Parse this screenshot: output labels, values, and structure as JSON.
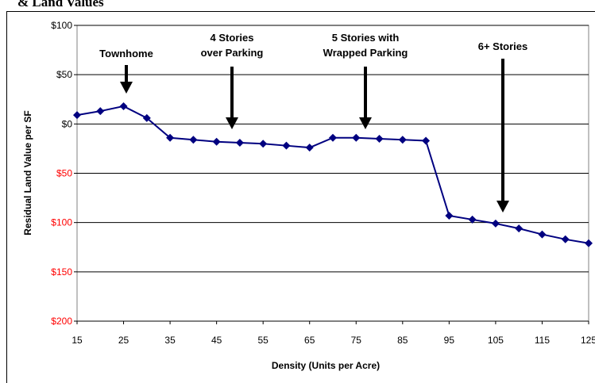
{
  "chart_data": {
    "type": "line",
    "title": "& Land Values",
    "x_label": "Density (Units per Acre)",
    "y_label": "Residual Land Value per SF",
    "x": [
      15,
      20,
      25,
      30,
      35,
      40,
      45,
      50,
      55,
      60,
      65,
      70,
      75,
      80,
      85,
      90,
      95,
      100,
      105,
      110,
      115,
      120,
      125
    ],
    "series": [
      {
        "color": "#000080",
        "values": [
          9,
          13,
          18,
          6,
          -14,
          -16,
          -18,
          -19,
          -20,
          -22,
          -24,
          -14,
          -14,
          -15,
          -16,
          -17,
          -93,
          -97,
          -101,
          -106,
          -112,
          -117,
          -121
        ]
      }
    ],
    "xlim": [
      15,
      125
    ],
    "xticks": [
      15,
      25,
      35,
      45,
      55,
      65,
      75,
      85,
      95,
      105,
      115,
      125
    ],
    "ylim": [
      -200,
      100
    ],
    "yticks": [
      {
        "value": -200,
        "label": "$200"
      },
      {
        "value": -150,
        "label": "$150"
      },
      {
        "value": -100,
        "label": "$100"
      },
      {
        "value": -50,
        "label": "$50"
      },
      {
        "value": 0,
        "label": "$0"
      },
      {
        "value": 50,
        "label": "$50"
      },
      {
        "value": 100,
        "label": "$100"
      }
    ],
    "negative_tick_color": "#ff0000",
    "grid": true,
    "annotations": [
      [
        "Townhome"
      ],
      [
        "4 Stories",
        "over Parking"
      ],
      [
        "5 Stories with",
        "Wrapped Parking"
      ],
      [
        "6+ Stories"
      ]
    ]
  }
}
